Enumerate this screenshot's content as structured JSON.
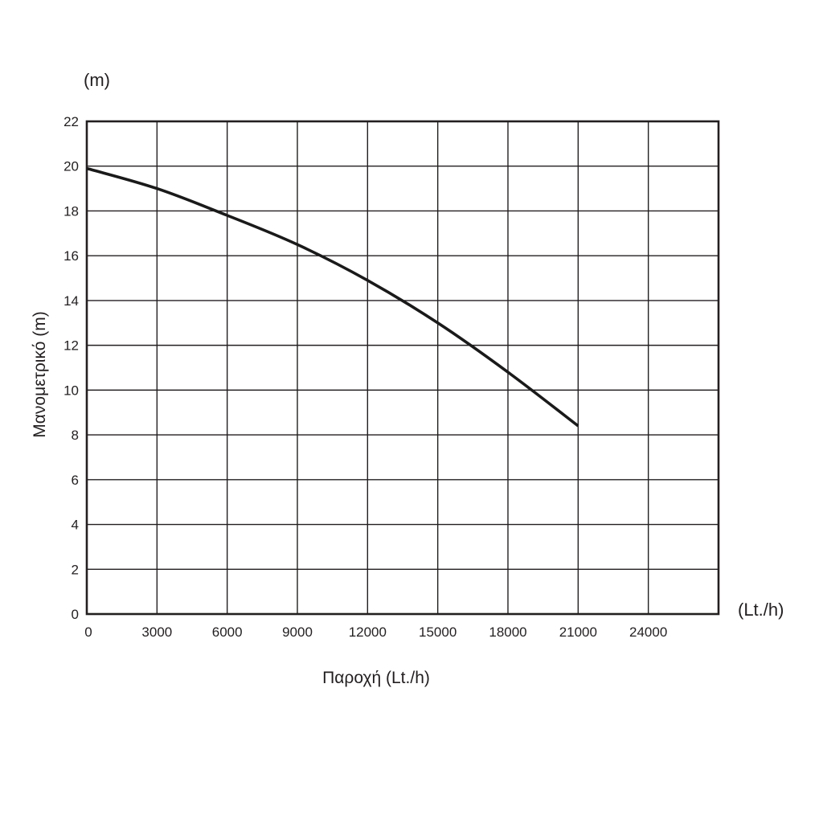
{
  "chart_data": {
    "type": "line",
    "title": "",
    "xlabel": "Παροχή (Lt./h)",
    "ylabel": "Μανομετρικό  (m)",
    "y_unit": "(m)",
    "x_unit": "(Lt./h)",
    "xlim": [
      0,
      27000
    ],
    "ylim": [
      0,
      22
    ],
    "x_ticks": [
      "0",
      "3000",
      "6000",
      "9000",
      "12000",
      "15000",
      "18000",
      "21000",
      "24000"
    ],
    "y_ticks": [
      "0",
      "2",
      "4",
      "6",
      "8",
      "10",
      "12",
      "14",
      "16",
      "18",
      "20",
      "22"
    ],
    "grid": true,
    "series": [
      {
        "x": [
          0,
          3000,
          6000,
          9000,
          12000,
          15000,
          18000,
          21000
        ],
        "y": [
          19.9,
          19.0,
          17.8,
          16.5,
          14.9,
          13.0,
          10.8,
          8.4
        ]
      }
    ],
    "colors": {
      "line": "#1a1a1a",
      "grid": "#231f20",
      "frame": "#231f20",
      "text": "#231f20"
    }
  }
}
